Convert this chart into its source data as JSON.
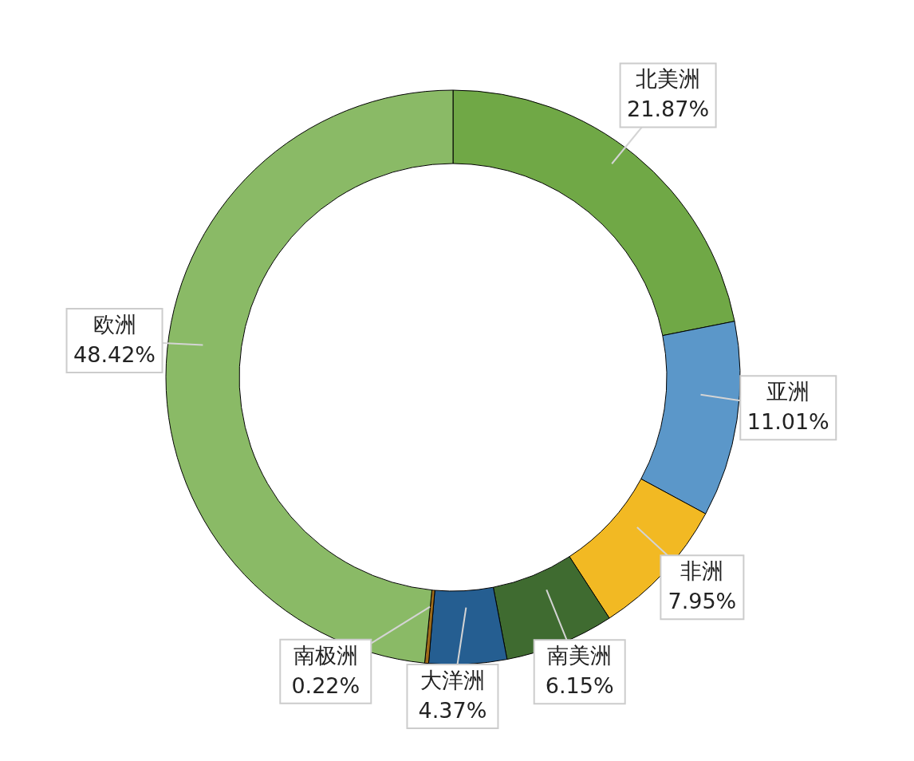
{
  "chart_data": {
    "type": "donut",
    "categories": [
      "北美洲",
      "亚洲",
      "非洲",
      "南美洲",
      "大洋洲",
      "南极洲",
      "欧洲"
    ],
    "values": [
      21.87,
      11.01,
      7.95,
      6.15,
      4.37,
      0.22,
      48.42
    ],
    "value_labels": [
      "21.87%",
      "11.01%",
      "7.95%",
      "6.15%",
      "4.37%",
      "0.22%",
      "48.42%"
    ],
    "colors": [
      "#70a846",
      "#5b97c9",
      "#f2b923",
      "#3f6b30",
      "#255e91",
      "#9e6b1a",
      "#8aba66"
    ]
  }
}
